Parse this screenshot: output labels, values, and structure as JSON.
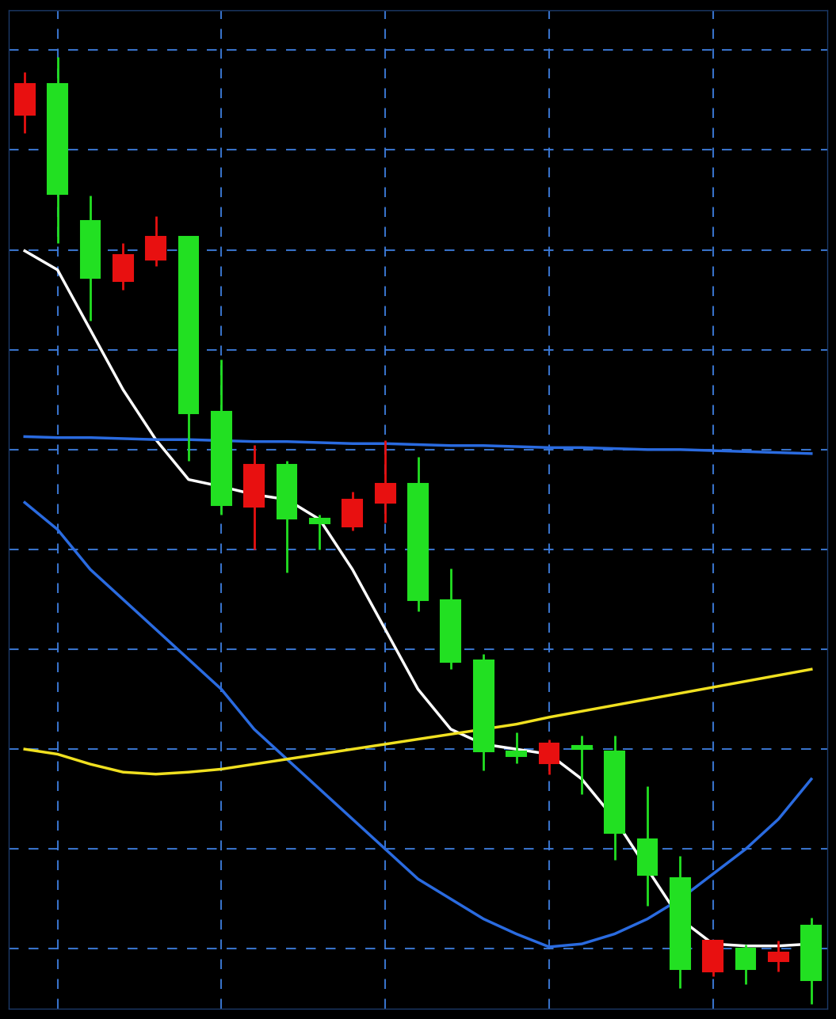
{
  "chart_data": {
    "type": "candlestick",
    "x": [
      0,
      1,
      2,
      3,
      4,
      5,
      6,
      7,
      8,
      9,
      10,
      11,
      12,
      13,
      14,
      15,
      16,
      17,
      18,
      19,
      20,
      21,
      22,
      23,
      24
    ],
    "xlim": [
      -0.5,
      24.5
    ],
    "xticks": [
      1,
      6,
      11,
      16,
      21
    ],
    "ylim": [
      0,
      100
    ],
    "yticks": [
      6,
      16,
      26,
      36,
      46,
      56,
      66,
      76,
      86,
      96
    ],
    "grid": true,
    "tick_labels": false,
    "series": [
      {
        "type": "candlestick",
        "open": [
          92.6,
          81.6,
          73.2,
          75.5,
          77.3,
          59.6,
          50.4,
          54.5,
          49.1,
          48.6,
          51.0,
          52.6,
          40.9,
          34.7,
          25.8,
          25.3,
          26.6,
          26.0,
          17.6,
          13.4,
          4.0,
          6.8,
          4.0,
          5.6,
          2.9
        ],
        "high": [
          93.8,
          95.3,
          81.4,
          76.7,
          79.4,
          77.3,
          65.0,
          56.5,
          54.9,
          49.5,
          51.8,
          56.9,
          55.3,
          44.1,
          35.5,
          27.7,
          27.0,
          27.4,
          27.4,
          22.3,
          15.3,
          6.8,
          6.4,
          6.8,
          9.1
        ],
        "low": [
          87.7,
          76.7,
          68.9,
          72.0,
          74.4,
          54.9,
          49.5,
          46.0,
          43.7,
          46.0,
          47.9,
          48.7,
          39.8,
          34.0,
          23.9,
          24.6,
          23.5,
          21.5,
          14.9,
          10.3,
          2.1,
          3.3,
          2.5,
          3.7,
          0.5
        ],
        "close": [
          89.5,
          92.6,
          78.9,
          72.9,
          75.0,
          77.3,
          59.8,
          50.3,
          54.5,
          49.1,
          48.3,
          50.7,
          52.6,
          40.9,
          34.9,
          25.8,
          24.6,
          26.3,
          25.8,
          17.0,
          13.1,
          3.7,
          6.0,
          4.8,
          8.3
        ],
        "colors": [
          "#e81010",
          "#22e022",
          "#22e022",
          "#e81010",
          "#e81010",
          "#22e022",
          "#22e022",
          "#e81010",
          "#22e022",
          "#22e022",
          "#e81010",
          "#e81010",
          "#22e022",
          "#22e022",
          "#22e022",
          "#22e022",
          "#e81010",
          "#22e022",
          "#22e022",
          "#22e022",
          "#22e022",
          "#e81010",
          "#22e022",
          "#e81010",
          "#22e022"
        ]
      },
      {
        "type": "line",
        "color": "#ffffff",
        "values": [
          75.9,
          74.0,
          68.0,
          62.0,
          57.0,
          53.0,
          52.3,
          51.5,
          51.0,
          49.0,
          44.0,
          38.0,
          32.0,
          28.0,
          26.5,
          26.0,
          25.5,
          23.0,
          19.0,
          14.0,
          9.0,
          6.5,
          6.3,
          6.3,
          6.5
        ]
      },
      {
        "type": "line",
        "color": "#2a6be0",
        "values": [
          50.7,
          48.0,
          44.0,
          41.0,
          38.0,
          35.0,
          32.0,
          28.0,
          25.0,
          22.0,
          19.0,
          16.0,
          13.0,
          11.0,
          9.0,
          7.5,
          6.2,
          6.5,
          7.5,
          9.0,
          11.0,
          13.5,
          16.0,
          19.0,
          23.0
        ]
      },
      {
        "type": "line",
        "color": "#f0e020",
        "values": [
          26.0,
          25.5,
          24.5,
          23.7,
          23.5,
          23.7,
          24.0,
          24.5,
          25.0,
          25.5,
          26.0,
          26.5,
          27.0,
          27.5,
          28.0,
          28.5,
          29.2,
          29.8,
          30.4,
          31.0,
          31.6,
          32.2,
          32.8,
          33.4,
          34.0
        ]
      },
      {
        "type": "line",
        "color": "#2a6be0",
        "values": [
          57.3,
          57.2,
          57.2,
          57.1,
          57.0,
          57.0,
          56.9,
          56.8,
          56.8,
          56.7,
          56.6,
          56.6,
          56.5,
          56.4,
          56.4,
          56.3,
          56.2,
          56.2,
          56.1,
          56.0,
          56.0,
          55.9,
          55.8,
          55.7,
          55.6
        ]
      }
    ]
  }
}
